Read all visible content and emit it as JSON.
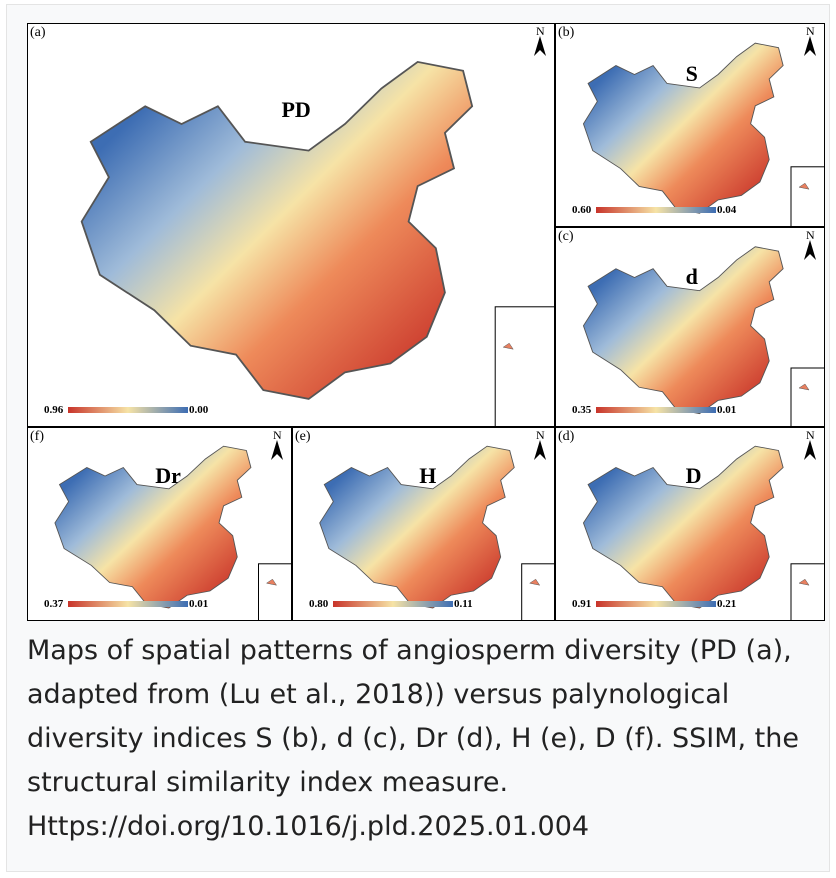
{
  "figure": {
    "panels": [
      {
        "label": "(a)",
        "title": "PD",
        "north": "N",
        "legend_min": "0.96",
        "legend_max": "0.00"
      },
      {
        "label": "(b)",
        "title": "S",
        "north": "N",
        "legend_min": "0.60",
        "legend_max": "0.04"
      },
      {
        "label": "(c)",
        "title": "d",
        "north": "N",
        "legend_min": "0.35",
        "legend_max": "0.01"
      },
      {
        "label": "(f)",
        "title": "Dr",
        "north": "N",
        "legend_min": "0.37",
        "legend_max": "0.01"
      },
      {
        "label": "(e)",
        "title": "H",
        "north": "N",
        "legend_min": "0.80",
        "legend_max": "0.11"
      },
      {
        "label": "(d)",
        "title": "D",
        "north": "N",
        "legend_min": "0.91",
        "legend_max": "0.21"
      }
    ],
    "caption": "Maps of spatial patterns of angiosperm diversity (PD (a), adapted from (Lu et al., 2018)) versus palynological diversity indices S (b), d (c), Dr (d), H (e), D (f). SSIM, the structural similarity index measure. Https://doi.org/10.1016/j.pld.2025.01.004"
  }
}
